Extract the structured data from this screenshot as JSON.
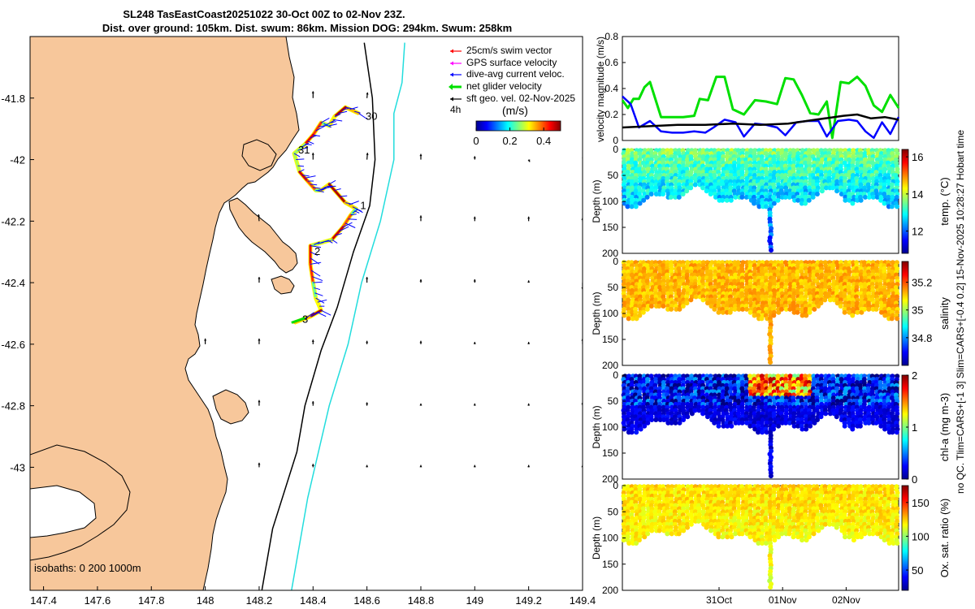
{
  "title": {
    "line1": "SL248 TasEastCoast20251022 30-Oct 00Z to 02-Nov 23Z.",
    "line2": "Dist. over ground: 105km. Dist. swum: 86km. Mission DOG: 294km. Swum: 258km"
  },
  "side_label": {
    "line1": "no QC. Tlim=CARS+[-1 3] Slim=CARS+[-0.4 0.2] 15-Nov-2025 10:28:27 Hobart time"
  },
  "colors": {
    "land": "#f7c79b",
    "swim_vector": "#ff0000",
    "gps_velocity": "#ff00ff",
    "current": "#0000ff",
    "net_velocity": "#00e000",
    "geo_vel": "#000000",
    "isobath_200": "#000000",
    "isobath_1000": "#22dddd"
  },
  "chart_data": [
    {
      "type": "map",
      "id": "glider-track-map",
      "xlabel": "",
      "ylabel": "",
      "xlim": [
        147.35,
        149.4
      ],
      "ylim": [
        -43.4,
        -41.6
      ],
      "xticks": [
        "147.4",
        "147.6",
        "147.8",
        "148",
        "148.2",
        "148.4",
        "148.6",
        "148.8",
        "149",
        "149.2",
        "149.4"
      ],
      "xtick_values": [
        147.4,
        147.6,
        147.8,
        148.0,
        148.2,
        148.4,
        148.6,
        148.8,
        149.0,
        149.2,
        149.4
      ],
      "yticks": [
        "-41.8",
        "-42",
        "-42.2",
        "-42.4",
        "-42.6",
        "-42.8",
        "-43"
      ],
      "ytick_values": [
        -41.8,
        -42.0,
        -42.2,
        -42.4,
        -42.6,
        -42.8,
        -43.0
      ],
      "legend": [
        {
          "label": "25cm/s swim vector",
          "color": "#ff0000"
        },
        {
          "label": "GPS surface velocity",
          "color": "#ff00ff"
        },
        {
          "label": "dive-avg current veloc.",
          "color": "#0000ff"
        },
        {
          "label": "net glider velocity",
          "color": "#00e000"
        },
        {
          "label": "sft geo. vel. 02-Nov-2025",
          "color": "#000000"
        }
      ],
      "legend_placement": "top-right",
      "colorbar": {
        "label": "(m/s)",
        "ticks": [
          "0",
          "0.2",
          "0.4"
        ],
        "range": [
          0,
          0.5
        ],
        "note": "4h"
      },
      "isobaths_label": "isobaths: 0   200  1000m",
      "track": [
        {
          "lon": 148.57,
          "lat": -41.85
        },
        {
          "lon": 148.52,
          "lat": -41.83
        },
        {
          "lon": 148.48,
          "lat": -41.86
        },
        {
          "lon": 148.46,
          "lat": -41.89
        },
        {
          "lon": 148.43,
          "lat": -41.88
        },
        {
          "lon": 148.4,
          "lat": -41.92
        },
        {
          "lon": 148.37,
          "lat": -41.95
        },
        {
          "lon": 148.33,
          "lat": -41.98
        },
        {
          "lon": 148.35,
          "lat": -42.04
        },
        {
          "lon": 148.38,
          "lat": -42.07
        },
        {
          "lon": 148.41,
          "lat": -42.1
        },
        {
          "lon": 148.43,
          "lat": -42.1
        },
        {
          "lon": 148.46,
          "lat": -42.08
        },
        {
          "lon": 148.52,
          "lat": -42.14
        },
        {
          "lon": 148.56,
          "lat": -42.16
        },
        {
          "lon": 148.54,
          "lat": -42.18
        },
        {
          "lon": 148.51,
          "lat": -42.22
        },
        {
          "lon": 148.47,
          "lat": -42.26
        },
        {
          "lon": 148.43,
          "lat": -42.27
        },
        {
          "lon": 148.39,
          "lat": -42.28
        },
        {
          "lon": 148.39,
          "lat": -42.34
        },
        {
          "lon": 148.4,
          "lat": -42.4
        },
        {
          "lon": 148.41,
          "lat": -42.45
        },
        {
          "lon": 148.43,
          "lat": -42.49
        },
        {
          "lon": 148.39,
          "lat": -42.51
        },
        {
          "lon": 148.33,
          "lat": -42.53
        }
      ],
      "day_labels": [
        {
          "label": "30",
          "lon": 148.595,
          "lat": -41.86
        },
        {
          "label": "31",
          "lon": 148.345,
          "lat": -41.97
        },
        {
          "label": "1",
          "lon": 148.575,
          "lat": -42.15
        },
        {
          "label": "2",
          "lon": 148.405,
          "lat": -42.3
        },
        {
          "label": "3",
          "lon": 148.36,
          "lat": -42.52
        }
      ],
      "geo_vectors": [
        {
          "lon": 148.4,
          "lat": -41.8,
          "u": 0.0,
          "v": 0.6
        },
        {
          "lon": 148.6,
          "lat": -41.8,
          "u": 0.05,
          "v": 0.5
        },
        {
          "lon": 148.4,
          "lat": -42.0,
          "u": 0.0,
          "v": 0.6
        },
        {
          "lon": 148.6,
          "lat": -42.0,
          "u": 0.05,
          "v": 0.6
        },
        {
          "lon": 148.8,
          "lat": -42.0,
          "u": 0.0,
          "v": 0.5
        },
        {
          "lon": 149.0,
          "lat": -42.0,
          "u": 0.0,
          "v": 0.3
        },
        {
          "lon": 149.2,
          "lat": -42.0,
          "u": 0.1,
          "v": -0.2
        },
        {
          "lon": 149.4,
          "lat": -42.0,
          "u": 0.1,
          "v": 0.3
        },
        {
          "lon": 148.2,
          "lat": -42.2,
          "u": -0.05,
          "v": 0.6
        },
        {
          "lon": 148.8,
          "lat": -42.2,
          "u": 0.0,
          "v": 0.5
        },
        {
          "lon": 149.0,
          "lat": -42.2,
          "u": 0.0,
          "v": 0.4
        },
        {
          "lon": 149.2,
          "lat": -42.2,
          "u": 0.0,
          "v": 0.4
        },
        {
          "lon": 149.4,
          "lat": -42.2,
          "u": 0.0,
          "v": 0.3
        },
        {
          "lon": 148.2,
          "lat": -42.4,
          "u": 0.0,
          "v": 0.5
        },
        {
          "lon": 148.6,
          "lat": -42.4,
          "u": 0.0,
          "v": 0.5
        },
        {
          "lon": 148.8,
          "lat": -42.4,
          "u": 0.0,
          "v": 0.3
        },
        {
          "lon": 149.0,
          "lat": -42.4,
          "u": 0.0,
          "v": 0.3
        },
        {
          "lon": 149.2,
          "lat": -42.4,
          "u": 0.0,
          "v": 0.2
        },
        {
          "lon": 149.4,
          "lat": -42.4,
          "u": 0.0,
          "v": -0.6
        },
        {
          "lon": 148.0,
          "lat": -42.6,
          "u": 0.0,
          "v": 0.5
        },
        {
          "lon": 148.2,
          "lat": -42.6,
          "u": 0.0,
          "v": 0.5
        },
        {
          "lon": 148.4,
          "lat": -42.6,
          "u": 0.0,
          "v": 0.4
        },
        {
          "lon": 148.6,
          "lat": -42.6,
          "u": 0.0,
          "v": 0.3
        },
        {
          "lon": 148.8,
          "lat": -42.6,
          "u": 0.0,
          "v": 0.3
        },
        {
          "lon": 149.0,
          "lat": -42.6,
          "u": 0.0,
          "v": 0.2
        },
        {
          "lon": 149.2,
          "lat": -42.6,
          "u": 0.0,
          "v": 0.2
        },
        {
          "lon": 149.4,
          "lat": -42.6,
          "u": 0.0,
          "v": 0.5
        },
        {
          "lon": 148.2,
          "lat": -42.8,
          "u": 0.0,
          "v": 0.5
        },
        {
          "lon": 148.4,
          "lat": -42.8,
          "u": 0.0,
          "v": 0.4
        },
        {
          "lon": 148.6,
          "lat": -42.8,
          "u": 0.0,
          "v": 0.3
        },
        {
          "lon": 148.8,
          "lat": -42.8,
          "u": 0.0,
          "v": 0.2
        },
        {
          "lon": 149.0,
          "lat": -42.8,
          "u": 0.0,
          "v": 0.2
        },
        {
          "lon": 149.2,
          "lat": -42.8,
          "u": 0.0,
          "v": 0.2
        },
        {
          "lon": 149.4,
          "lat": -42.8,
          "u": 0.0,
          "v": 0.3
        },
        {
          "lon": 148.2,
          "lat": -43.0,
          "u": 0.0,
          "v": 0.4
        },
        {
          "lon": 148.4,
          "lat": -43.0,
          "u": 0.0,
          "v": 0.3
        },
        {
          "lon": 148.6,
          "lat": -43.0,
          "u": 0.0,
          "v": 0.2
        },
        {
          "lon": 148.8,
          "lat": -43.0,
          "u": 0.0,
          "v": 0.2
        },
        {
          "lon": 149.0,
          "lat": -43.0,
          "u": 0.0,
          "v": 0.2
        },
        {
          "lon": 149.2,
          "lat": -43.0,
          "u": 0.0,
          "v": 0.2
        },
        {
          "lon": 149.4,
          "lat": -43.0,
          "u": 0.0,
          "v": 0.2
        }
      ],
      "isobath_200": [
        {
          "lon": 148.59,
          "lat": -41.62
        },
        {
          "lon": 148.62,
          "lat": -41.8
        },
        {
          "lon": 148.63,
          "lat": -42.0
        },
        {
          "lon": 148.61,
          "lat": -42.15
        },
        {
          "lon": 148.55,
          "lat": -42.3
        },
        {
          "lon": 148.49,
          "lat": -42.48
        },
        {
          "lon": 148.43,
          "lat": -42.62
        },
        {
          "lon": 148.37,
          "lat": -42.8
        },
        {
          "lon": 148.34,
          "lat": -42.95
        },
        {
          "lon": 148.25,
          "lat": -43.2
        },
        {
          "lon": 148.21,
          "lat": -43.4
        }
      ],
      "isobath_1000": [
        {
          "lon": 148.74,
          "lat": -41.62
        },
        {
          "lon": 148.73,
          "lat": -41.75
        },
        {
          "lon": 148.7,
          "lat": -41.85
        },
        {
          "lon": 148.7,
          "lat": -42.0
        },
        {
          "lon": 148.65,
          "lat": -42.2
        },
        {
          "lon": 148.58,
          "lat": -42.4
        },
        {
          "lon": 148.53,
          "lat": -42.6
        },
        {
          "lon": 148.46,
          "lat": -42.8
        },
        {
          "lon": 148.38,
          "lat": -43.1
        },
        {
          "lon": 148.32,
          "lat": -43.4
        }
      ]
    },
    {
      "type": "line",
      "id": "velocity-magnitude-panel",
      "title": "",
      "xlabel": "",
      "ylabel": "velocity magnitude (m/s)",
      "ylim": [
        0,
        0.8
      ],
      "yticks": [
        "0",
        "0.2",
        "0.4",
        "0.6",
        "0.8"
      ],
      "ytick_values": [
        0,
        0.2,
        0.4,
        0.6,
        0.8
      ],
      "xlim": [
        0,
        1
      ],
      "series": [
        {
          "name": "net glider velocity",
          "color": "#00e000",
          "x": [
            0.0,
            0.02,
            0.04,
            0.06,
            0.08,
            0.1,
            0.14,
            0.18,
            0.22,
            0.26,
            0.28,
            0.31,
            0.34,
            0.37,
            0.4,
            0.44,
            0.48,
            0.52,
            0.56,
            0.59,
            0.62,
            0.65,
            0.68,
            0.71,
            0.74,
            0.76,
            0.79,
            0.82,
            0.85,
            0.88,
            0.91,
            0.94,
            0.97,
            1.0
          ],
          "y": [
            0.31,
            0.25,
            0.32,
            0.32,
            0.41,
            0.45,
            0.18,
            0.18,
            0.18,
            0.19,
            0.32,
            0.31,
            0.49,
            0.49,
            0.24,
            0.2,
            0.31,
            0.3,
            0.28,
            0.48,
            0.47,
            0.35,
            0.21,
            0.2,
            0.3,
            0.02,
            0.45,
            0.44,
            0.49,
            0.42,
            0.27,
            0.22,
            0.35,
            0.25
          ]
        },
        {
          "name": "dive-avg current veloc.",
          "color": "#0000ff",
          "x": [
            0.0,
            0.03,
            0.06,
            0.1,
            0.14,
            0.18,
            0.22,
            0.26,
            0.3,
            0.33,
            0.37,
            0.41,
            0.44,
            0.48,
            0.52,
            0.56,
            0.59,
            0.63,
            0.67,
            0.71,
            0.74,
            0.78,
            0.82,
            0.85,
            0.88,
            0.91,
            0.94,
            0.97,
            1.0
          ],
          "y": [
            0.34,
            0.28,
            0.1,
            0.15,
            0.07,
            0.06,
            0.06,
            0.07,
            0.06,
            0.1,
            0.16,
            0.14,
            0.03,
            0.13,
            0.12,
            0.1,
            0.04,
            0.14,
            0.15,
            0.15,
            0.03,
            0.15,
            0.16,
            0.15,
            0.07,
            0.02,
            0.14,
            0.05,
            0.18
          ]
        },
        {
          "name": "sft geo. vel.",
          "color": "#000000",
          "x": [
            0.0,
            0.1,
            0.2,
            0.3,
            0.4,
            0.5,
            0.6,
            0.7,
            0.8,
            0.85,
            0.9,
            0.95,
            1.0
          ],
          "y": [
            0.1,
            0.11,
            0.12,
            0.12,
            0.13,
            0.12,
            0.13,
            0.16,
            0.19,
            0.2,
            0.17,
            0.18,
            0.16
          ]
        }
      ]
    },
    {
      "type": "scatter-section",
      "id": "temperature-section",
      "ylabel": "Depth (m)",
      "colorbar_label": "temp. (°C)",
      "colorbar_ticks": [
        "12",
        "14",
        "16"
      ],
      "colorbar_tick_values": [
        12,
        14,
        16
      ],
      "crange": [
        10.8,
        16.4
      ],
      "base_value": 13.6,
      "spread": 0.5,
      "hot_value": 14.8,
      "ylim": [
        0,
        200
      ],
      "yticks": [
        "0",
        "50",
        "100",
        "150",
        "200"
      ],
      "ytick_values": [
        0,
        50,
        100,
        150,
        200
      ]
    },
    {
      "type": "scatter-section",
      "id": "salinity-section",
      "ylabel": "Depth (m)",
      "colorbar_label": "salinity",
      "colorbar_ticks": [
        "34.8",
        "35",
        "35.2"
      ],
      "colorbar_tick_values": [
        34.8,
        35.0,
        35.2
      ],
      "crange": [
        34.6,
        35.35
      ],
      "base_value": 35.12,
      "spread": 0.04,
      "hot_value": 35.18,
      "ylim": [
        0,
        200
      ],
      "yticks": [
        "0",
        "50",
        "100",
        "150",
        "200"
      ],
      "ytick_values": [
        0,
        50,
        100,
        150,
        200
      ]
    },
    {
      "type": "scatter-section",
      "id": "chla-section",
      "ylabel": "Depth (m)",
      "colorbar_label": "chl-a (mg m-3)",
      "colorbar_ticks": [
        "0",
        "1",
        "2"
      ],
      "colorbar_tick_values": [
        0,
        1,
        2
      ],
      "crange": [
        0,
        2
      ],
      "base_value": 0.25,
      "spread": 0.35,
      "hot_value": 1.9,
      "ylim": [
        0,
        200
      ],
      "yticks": [
        "0",
        "50",
        "100",
        "150",
        "200"
      ],
      "ytick_values": [
        0,
        50,
        100,
        150,
        200
      ]
    },
    {
      "type": "scatter-section",
      "id": "oxygen-section",
      "ylabel": "Depth (m)",
      "colorbar_label": "Ox. sat. ratio (%)",
      "colorbar_ticks": [
        "50",
        "100",
        "150"
      ],
      "colorbar_tick_values": [
        50,
        100,
        150
      ],
      "crange": [
        20,
        175
      ],
      "base_value": 122,
      "spread": 8,
      "hot_value": 125,
      "ylim": [
        0,
        200
      ],
      "yticks": [
        "0",
        "50",
        "100",
        "150",
        "200"
      ],
      "ytick_values": [
        0,
        50,
        100,
        150,
        200
      ],
      "xticks": [
        "31Oct",
        "01Nov",
        "02Nov"
      ],
      "xtick_values": [
        0.35,
        0.58,
        0.81
      ]
    }
  ]
}
